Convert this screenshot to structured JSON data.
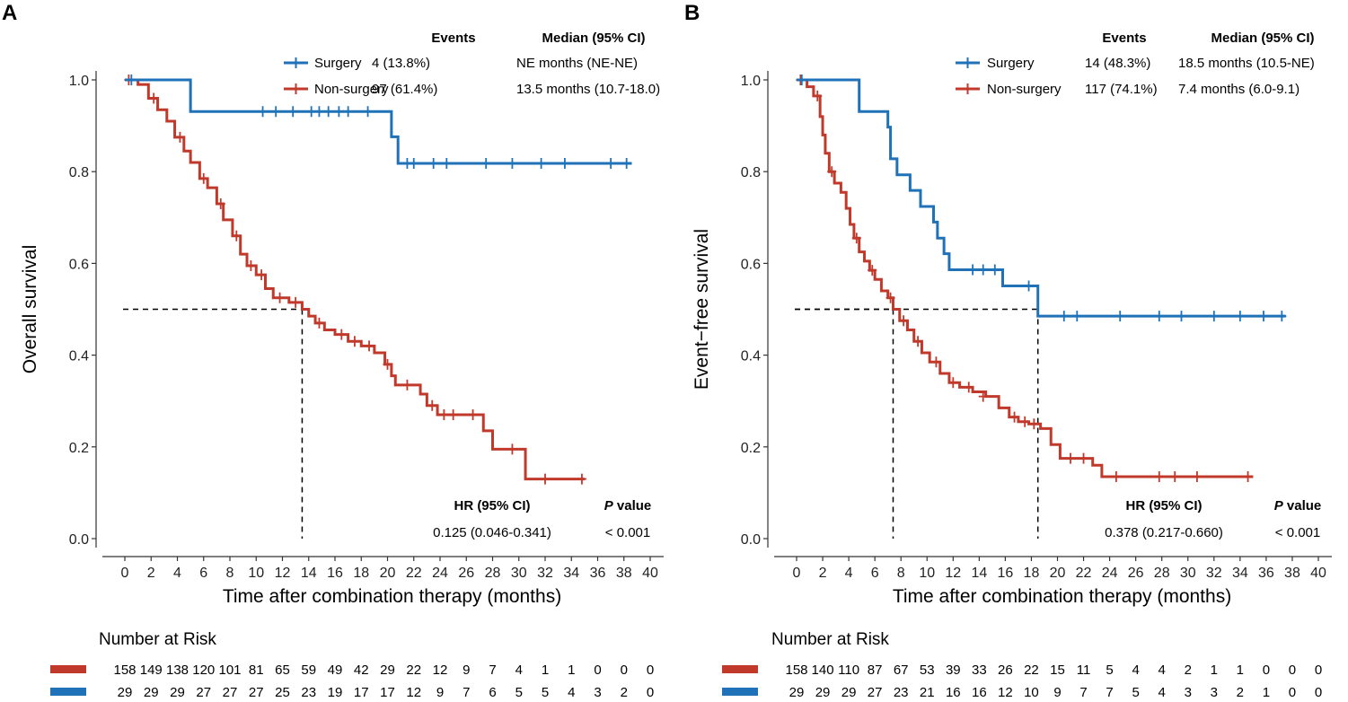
{
  "colors": {
    "surgery": "#1f72b8",
    "nonsurgery": "#c0392b"
  },
  "chart_data": [
    {
      "type": "line",
      "panel": "A",
      "ylabel": "Overall survival",
      "xlabel": "Time after combination therapy (months)",
      "xlim": [
        0,
        40
      ],
      "ylim": [
        0,
        1
      ],
      "xticks": [
        "0",
        "2",
        "4",
        "6",
        "8",
        "10",
        "12",
        "14",
        "16",
        "18",
        "20",
        "22",
        "24",
        "26",
        "28",
        "30",
        "32",
        "34",
        "36",
        "38",
        "40"
      ],
      "yticks": [
        "0.0",
        "0.2",
        "0.4",
        "0.6",
        "0.8",
        "1.0"
      ],
      "legend": {
        "events_header": "Events",
        "median_header": "Median (95% CI)",
        "rows": [
          {
            "name": "Surgery",
            "events": "4 (13.8%)",
            "median": "NE months (NE-NE)"
          },
          {
            "name": "Non-surgery",
            "events": "97 (61.4%)",
            "median": "13.5 months (10.7-18.0)"
          }
        ]
      },
      "hr_header": "HR (95% CI)",
      "p_header_italic": "P",
      "p_header_rest": " value",
      "hr_value": "0.125 (0.046-0.341)",
      "p_value": "< 0.001",
      "median_lines": [
        13.5
      ],
      "series": [
        {
          "name": "Surgery",
          "steps": [
            [
              0,
              1
            ],
            [
              5,
              0.931
            ],
            [
              20.3,
              0.876
            ],
            [
              20.8,
              0.818
            ],
            [
              38.6,
              0.818
            ]
          ],
          "censors": [
            [
              0.5,
              1
            ],
            [
              10.5,
              0.931
            ],
            [
              11.5,
              0.931
            ],
            [
              12.8,
              0.931
            ],
            [
              14.2,
              0.931
            ],
            [
              14.8,
              0.931
            ],
            [
              15.5,
              0.931
            ],
            [
              16.3,
              0.931
            ],
            [
              17,
              0.931
            ],
            [
              18.5,
              0.931
            ],
            [
              21.5,
              0.818
            ],
            [
              22,
              0.818
            ],
            [
              23.5,
              0.818
            ],
            [
              24.5,
              0.818
            ],
            [
              27.5,
              0.818
            ],
            [
              29.5,
              0.818
            ],
            [
              31.7,
              0.818
            ],
            [
              33.5,
              0.818
            ],
            [
              37,
              0.818
            ],
            [
              38.2,
              0.818
            ]
          ]
        },
        {
          "name": "Non-surgery",
          "steps": [
            [
              0,
              1
            ],
            [
              1,
              0.99
            ],
            [
              1.8,
              0.96
            ],
            [
              2.5,
              0.935
            ],
            [
              3.2,
              0.91
            ],
            [
              3.8,
              0.875
            ],
            [
              4.5,
              0.845
            ],
            [
              5,
              0.82
            ],
            [
              5.7,
              0.785
            ],
            [
              6.3,
              0.765
            ],
            [
              7,
              0.73
            ],
            [
              7.5,
              0.695
            ],
            [
              8.2,
              0.66
            ],
            [
              8.8,
              0.62
            ],
            [
              9.3,
              0.595
            ],
            [
              10,
              0.575
            ],
            [
              10.7,
              0.545
            ],
            [
              11.3,
              0.525
            ],
            [
              12.5,
              0.515
            ],
            [
              13.5,
              0.5
            ],
            [
              14,
              0.485
            ],
            [
              14.5,
              0.47
            ],
            [
              15.2,
              0.455
            ],
            [
              16,
              0.445
            ],
            [
              17,
              0.43
            ],
            [
              18,
              0.42
            ],
            [
              19,
              0.405
            ],
            [
              19.8,
              0.38
            ],
            [
              20.3,
              0.355
            ],
            [
              20.6,
              0.335
            ],
            [
              22.5,
              0.315
            ],
            [
              23,
              0.29
            ],
            [
              23.8,
              0.27
            ],
            [
              27.3,
              0.235
            ],
            [
              28,
              0.195
            ],
            [
              30.5,
              0.13
            ],
            [
              35,
              0.13
            ]
          ],
          "censors": [
            [
              0.3,
              1
            ],
            [
              2.2,
              0.96
            ],
            [
              4.2,
              0.875
            ],
            [
              6,
              0.785
            ],
            [
              7.3,
              0.73
            ],
            [
              8.5,
              0.66
            ],
            [
              9.6,
              0.595
            ],
            [
              10.4,
              0.575
            ],
            [
              11.8,
              0.525
            ],
            [
              13,
              0.515
            ],
            [
              14.8,
              0.47
            ],
            [
              16.5,
              0.445
            ],
            [
              17.5,
              0.43
            ],
            [
              18.6,
              0.42
            ],
            [
              20,
              0.38
            ],
            [
              21.5,
              0.335
            ],
            [
              23.4,
              0.29
            ],
            [
              24.3,
              0.27
            ],
            [
              25,
              0.27
            ],
            [
              26.5,
              0.27
            ],
            [
              29.5,
              0.195
            ],
            [
              32,
              0.13
            ],
            [
              34.8,
              0.13
            ]
          ]
        }
      ],
      "risk": {
        "title": "Number at Risk",
        "rows": [
          {
            "name": "Non-surgery",
            "values": [
              "158",
              "149",
              "138",
              "120",
              "101",
              "81",
              "65",
              "59",
              "49",
              "42",
              "29",
              "22",
              "12",
              "9",
              "7",
              "4",
              "1",
              "1",
              "0",
              "0",
              "0"
            ]
          },
          {
            "name": "Surgery",
            "values": [
              "29",
              "29",
              "29",
              "27",
              "27",
              "27",
              "25",
              "23",
              "19",
              "17",
              "17",
              "12",
              "9",
              "7",
              "6",
              "5",
              "5",
              "4",
              "3",
              "2",
              "0"
            ]
          }
        ]
      }
    },
    {
      "type": "line",
      "panel": "B",
      "ylabel": "Event−free survival",
      "xlabel": "Time after combination therapy (months)",
      "xlim": [
        0,
        40
      ],
      "ylim": [
        0,
        1
      ],
      "xticks": [
        "0",
        "2",
        "4",
        "6",
        "8",
        "10",
        "12",
        "14",
        "16",
        "18",
        "20",
        "22",
        "24",
        "26",
        "28",
        "30",
        "32",
        "34",
        "36",
        "38",
        "40"
      ],
      "yticks": [
        "0.0",
        "0.2",
        "0.4",
        "0.6",
        "0.8",
        "1.0"
      ],
      "legend": {
        "events_header": "Events",
        "median_header": "Median (95% CI)",
        "rows": [
          {
            "name": "Surgery",
            "events": "14  (48.3%)",
            "median": "18.5 months (10.5-NE)"
          },
          {
            "name": "Non-surgery",
            "events": "117 (74.1%)",
            "median": "7.4 months (6.0-9.1)"
          }
        ]
      },
      "hr_header": "HR (95% CI)",
      "p_header_italic": "P",
      "p_header_rest": " value",
      "hr_value": "0.378 (0.217-0.660)",
      "p_value": "< 0.001",
      "median_lines": [
        7.4,
        18.5
      ],
      "series": [
        {
          "name": "Surgery",
          "steps": [
            [
              0,
              1
            ],
            [
              4.8,
              0.931
            ],
            [
              7,
              0.897
            ],
            [
              7.2,
              0.828
            ],
            [
              7.7,
              0.793
            ],
            [
              8.7,
              0.759
            ],
            [
              9.5,
              0.724
            ],
            [
              10.5,
              0.69
            ],
            [
              10.8,
              0.655
            ],
            [
              11.3,
              0.621
            ],
            [
              11.7,
              0.586
            ],
            [
              15.8,
              0.551
            ],
            [
              18.5,
              0.485
            ],
            [
              37.5,
              0.485
            ]
          ],
          "censors": [
            [
              0.4,
              1
            ],
            [
              13.5,
              0.586
            ],
            [
              14.3,
              0.586
            ],
            [
              15.2,
              0.586
            ],
            [
              17.8,
              0.551
            ],
            [
              20.5,
              0.485
            ],
            [
              21.5,
              0.485
            ],
            [
              24.8,
              0.485
            ],
            [
              27.8,
              0.485
            ],
            [
              29.5,
              0.485
            ],
            [
              32,
              0.485
            ],
            [
              34,
              0.485
            ],
            [
              35.8,
              0.485
            ],
            [
              37.2,
              0.485
            ]
          ],
          "censor_color_override": ""
        },
        {
          "name": "Non-surgery",
          "steps": [
            [
              0,
              1
            ],
            [
              0.8,
              0.985
            ],
            [
              1.3,
              0.965
            ],
            [
              1.8,
              0.92
            ],
            [
              2,
              0.88
            ],
            [
              2.2,
              0.84
            ],
            [
              2.5,
              0.8
            ],
            [
              2.9,
              0.775
            ],
            [
              3.4,
              0.755
            ],
            [
              3.8,
              0.72
            ],
            [
              4.1,
              0.685
            ],
            [
              4.4,
              0.655
            ],
            [
              4.8,
              0.625
            ],
            [
              5.2,
              0.605
            ],
            [
              5.6,
              0.585
            ],
            [
              6,
              0.565
            ],
            [
              6.5,
              0.54
            ],
            [
              7,
              0.525
            ],
            [
              7.4,
              0.5
            ],
            [
              7.9,
              0.475
            ],
            [
              8.5,
              0.455
            ],
            [
              9,
              0.43
            ],
            [
              9.6,
              0.405
            ],
            [
              10.2,
              0.385
            ],
            [
              11,
              0.36
            ],
            [
              11.7,
              0.34
            ],
            [
              12.5,
              0.33
            ],
            [
              13.5,
              0.32
            ],
            [
              14.5,
              0.31
            ],
            [
              15.5,
              0.285
            ],
            [
              16.3,
              0.265
            ],
            [
              17,
              0.255
            ],
            [
              17.8,
              0.25
            ],
            [
              18.7,
              0.24
            ],
            [
              19.5,
              0.205
            ],
            [
              20.2,
              0.175
            ],
            [
              22.7,
              0.16
            ],
            [
              23.4,
              0.135
            ],
            [
              35,
              0.135
            ]
          ],
          "censors": [
            [
              0.3,
              1
            ],
            [
              1.6,
              0.965
            ],
            [
              2.7,
              0.8
            ],
            [
              4.6,
              0.655
            ],
            [
              5.8,
              0.585
            ],
            [
              7.2,
              0.525
            ],
            [
              8.2,
              0.475
            ],
            [
              9.3,
              0.43
            ],
            [
              10.7,
              0.385
            ],
            [
              12,
              0.34
            ],
            [
              13.2,
              0.33
            ],
            [
              14.3,
              0.31
            ],
            [
              16.7,
              0.265
            ],
            [
              17.5,
              0.255
            ],
            [
              18.2,
              0.25
            ],
            [
              21,
              0.175
            ],
            [
              22,
              0.175
            ],
            [
              24.5,
              0.135
            ],
            [
              27.8,
              0.135
            ],
            [
              29,
              0.135
            ],
            [
              30.7,
              0.135
            ],
            [
              34.6,
              0.135
            ]
          ]
        }
      ],
      "risk": {
        "title": "Number at Risk",
        "rows": [
          {
            "name": "Non-surgery",
            "values": [
              "158",
              "140",
              "110",
              "87",
              "67",
              "53",
              "39",
              "33",
              "26",
              "22",
              "15",
              "11",
              "5",
              "4",
              "4",
              "2",
              "1",
              "1",
              "0",
              "0",
              "0"
            ]
          },
          {
            "name": "Surgery",
            "values": [
              "29",
              "29",
              "29",
              "27",
              "23",
              "21",
              "16",
              "16",
              "12",
              "10",
              "9",
              "7",
              "7",
              "5",
              "4",
              "3",
              "3",
              "2",
              "1",
              "0",
              "0"
            ]
          }
        ]
      }
    }
  ]
}
